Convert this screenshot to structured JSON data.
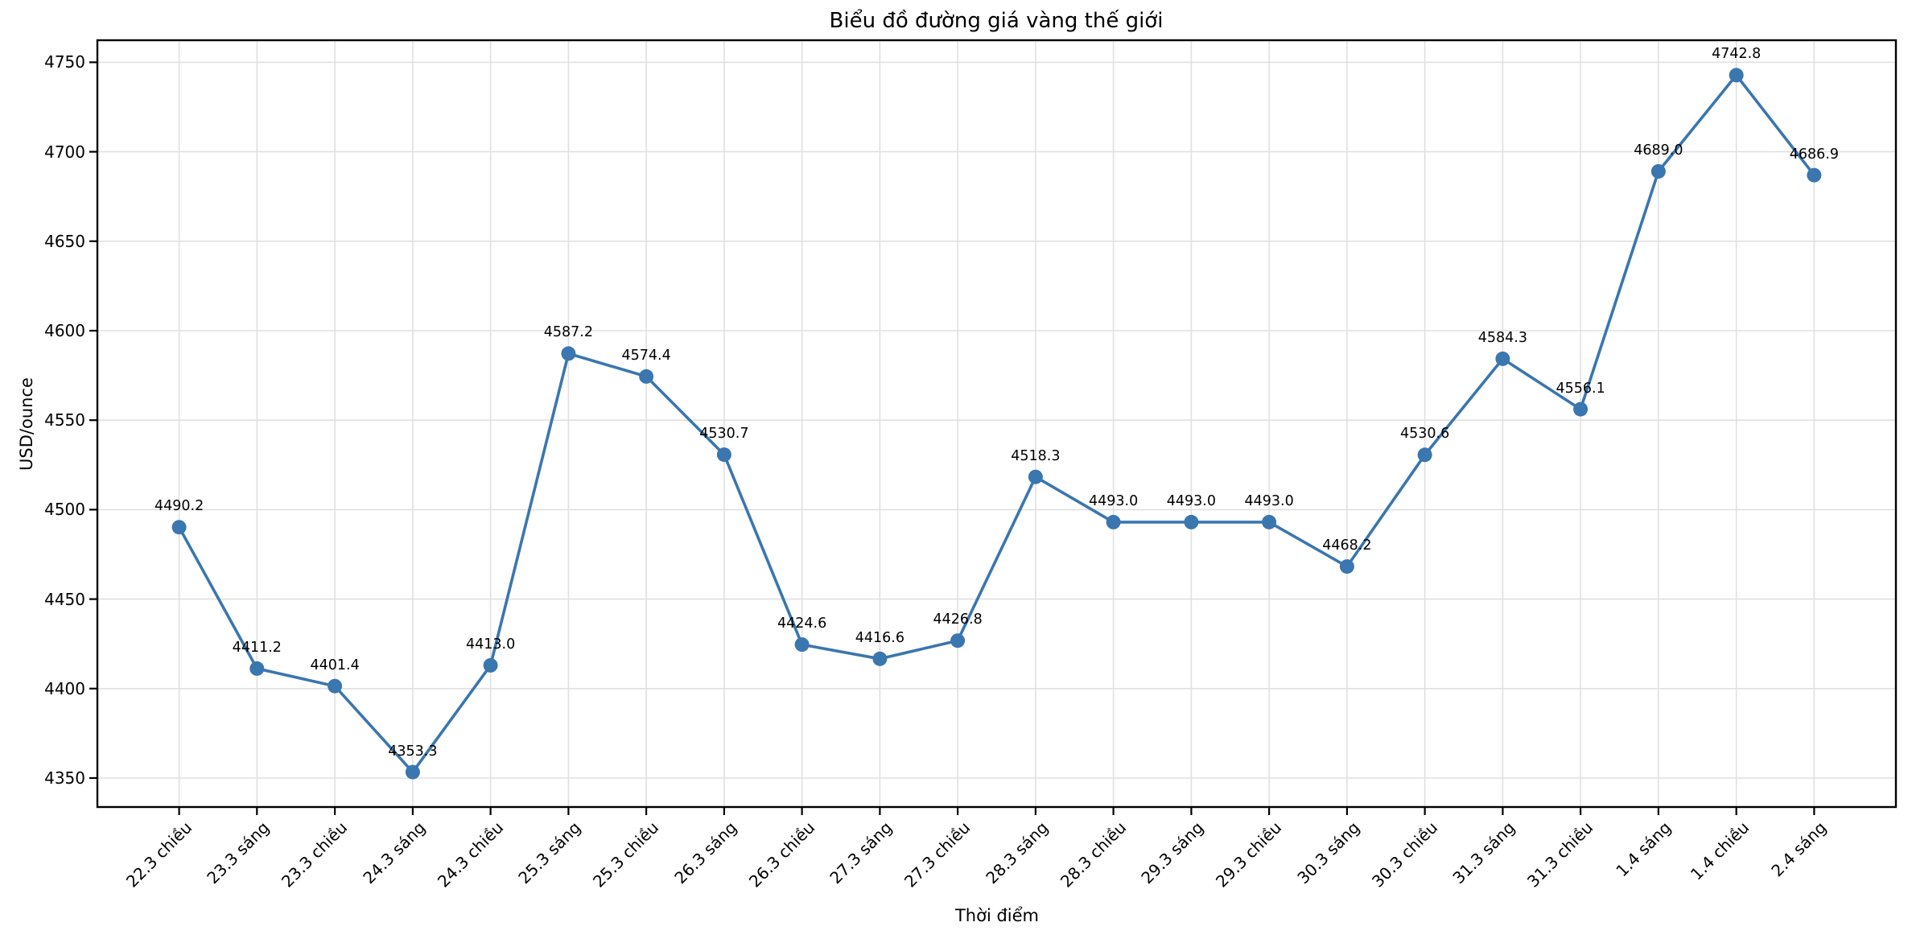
{
  "chart_data": {
    "type": "line",
    "title": "Biểu đồ đường giá vàng thế giới",
    "xlabel": "Thời điểm",
    "ylabel": "USD/ounce",
    "categories": [
      "22.3 chiều",
      "23.3 sáng",
      "23.3 chiều",
      "24.3 sáng",
      "24.3 chiều",
      "25.3 sáng",
      "25.3 chiều",
      "26.3 sáng",
      "26.3 chiều",
      "27.3 sáng",
      "27.3 chiều",
      "28.3 sáng",
      "28.3 chiều",
      "29.3 sáng",
      "29.3 chiều",
      "30.3 sáng",
      "30.3 chiều",
      "31.3 sáng",
      "31.3 chiều",
      "1.4 sáng",
      "1.4 chiều",
      "2.4 sáng"
    ],
    "values": [
      4490.2,
      4411.2,
      4401.4,
      4353.3,
      4413.0,
      4587.2,
      4574.4,
      4530.7,
      4424.6,
      4416.6,
      4426.8,
      4518.3,
      4493.0,
      4493.0,
      4493.0,
      4468.2,
      4530.6,
      4584.3,
      4556.1,
      4689.0,
      4742.8,
      4686.9
    ],
    "data_labels": [
      "4490.2",
      "4411.2",
      "4401.4",
      "4353.3",
      "4413.0",
      "4587.2",
      "4574.4",
      "4530.7",
      "4424.6",
      "4416.6",
      "4426.8",
      "4518.3",
      "4493.0",
      "4493.0",
      "4493.0",
      "4468.2",
      "4530.6",
      "4584.3",
      "4556.1",
      "4689.0",
      "4742.8",
      "4686.9"
    ],
    "y_ticks": [
      4350,
      4400,
      4450,
      4500,
      4550,
      4600,
      4650,
      4700,
      4750
    ],
    "ylim": [
      4333.8,
      4762.3
    ],
    "x_margin": 1.05,
    "grid": true,
    "legend": "none",
    "line_color": "#3a76af",
    "marker_color": "#3a76af",
    "grid_color": "#e0e0e0",
    "frame_color": "#000000",
    "text_color": "#000000"
  }
}
